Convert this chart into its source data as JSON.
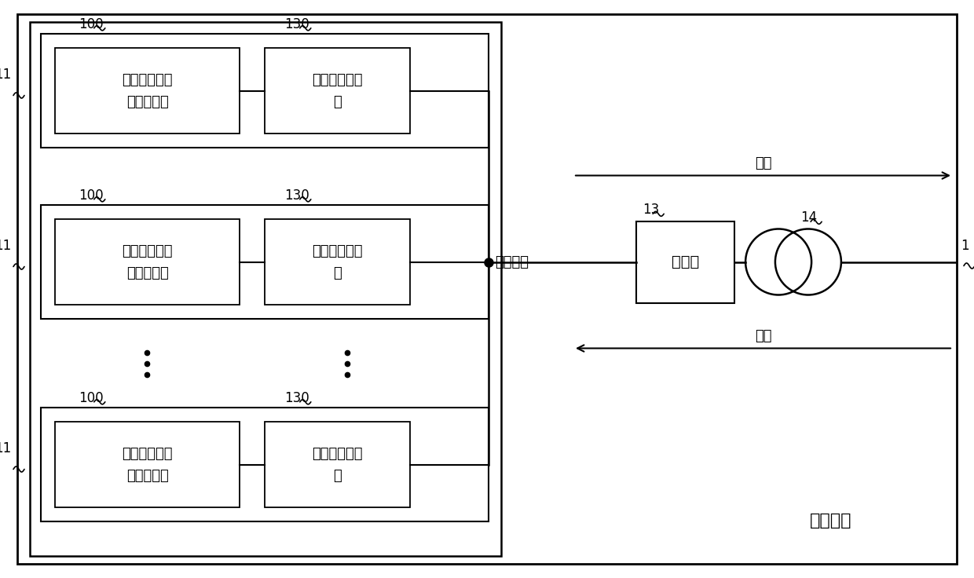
{
  "background_color": "#ffffff",
  "battery_text1": "被直接使用的",
  "battery_text2": "梯次电池包",
  "charger_text1": "双向车载充电",
  "charger_text2": "机",
  "label_11": "11",
  "label_1": "1",
  "label_13": "13",
  "label_14": "14",
  "ac_bus_label": "交流总线",
  "switch_label": "开关柜",
  "discharge_label": "放电",
  "charge_label": "充电",
  "system_label_text": "储能系统",
  "battery_label": "100",
  "charger_label": "130"
}
